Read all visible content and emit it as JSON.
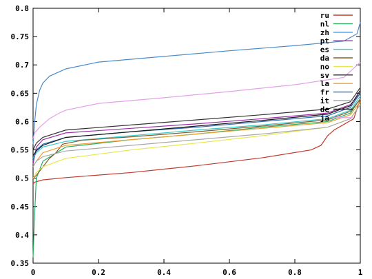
{
  "chart_data": {
    "type": "line",
    "title": "",
    "xlabel": "",
    "ylabel": "",
    "xlim": [
      0,
      1
    ],
    "ylim": [
      0.35,
      0.8
    ],
    "x_ticks": [
      "0",
      "0.2",
      "0.4",
      "0.6",
      "0.8",
      "1"
    ],
    "y_ticks": [
      "0.35",
      "0.4",
      "0.45",
      "0.5",
      "0.55",
      "0.6",
      "0.65",
      "0.7",
      "0.75",
      "0.8"
    ],
    "grid": false,
    "legend_position": "top-right",
    "series": [
      {
        "name": "ru",
        "color": "#c0392b",
        "points": [
          [
            0,
            0.49
          ],
          [
            0.005,
            0.493
          ],
          [
            0.03,
            0.497
          ],
          [
            0.1,
            0.501
          ],
          [
            0.3,
            0.51
          ],
          [
            0.5,
            0.522
          ],
          [
            0.7,
            0.536
          ],
          [
            0.85,
            0.55
          ],
          [
            0.88,
            0.558
          ],
          [
            0.9,
            0.575
          ],
          [
            0.92,
            0.585
          ],
          [
            0.95,
            0.595
          ],
          [
            0.98,
            0.605
          ],
          [
            1.0,
            0.64
          ]
        ]
      },
      {
        "name": "nl",
        "color": "#27ae60",
        "points": [
          [
            0,
            0.36
          ],
          [
            0.005,
            0.44
          ],
          [
            0.01,
            0.5
          ],
          [
            0.03,
            0.53
          ],
          [
            0.1,
            0.555
          ],
          [
            0.3,
            0.568
          ],
          [
            0.5,
            0.578
          ],
          [
            0.7,
            0.59
          ],
          [
            0.9,
            0.6
          ],
          [
            0.97,
            0.615
          ],
          [
            1.0,
            0.64
          ]
        ]
      },
      {
        "name": "zh",
        "color": "#4a8ccb",
        "points": [
          [
            0,
            0.56
          ],
          [
            0.005,
            0.6
          ],
          [
            0.01,
            0.63
          ],
          [
            0.02,
            0.655
          ],
          [
            0.03,
            0.668
          ],
          [
            0.05,
            0.68
          ],
          [
            0.1,
            0.693
          ],
          [
            0.2,
            0.705
          ],
          [
            0.4,
            0.715
          ],
          [
            0.6,
            0.725
          ],
          [
            0.8,
            0.734
          ],
          [
            0.95,
            0.742
          ],
          [
            0.99,
            0.755
          ],
          [
            1.0,
            0.775
          ]
        ]
      },
      {
        "name": "pt",
        "color": "#9b30a8",
        "points": [
          [
            0,
            0.525
          ],
          [
            0.01,
            0.555
          ],
          [
            0.03,
            0.568
          ],
          [
            0.1,
            0.58
          ],
          [
            0.3,
            0.588
          ],
          [
            0.5,
            0.596
          ],
          [
            0.7,
            0.605
          ],
          [
            0.9,
            0.615
          ],
          [
            0.97,
            0.63
          ],
          [
            1.0,
            0.65
          ]
        ]
      },
      {
        "name": "es",
        "color": "#33cccc",
        "points": [
          [
            0,
            0.535
          ],
          [
            0.01,
            0.545
          ],
          [
            0.03,
            0.555
          ],
          [
            0.1,
            0.565
          ],
          [
            0.3,
            0.575
          ],
          [
            0.5,
            0.585
          ],
          [
            0.7,
            0.594
          ],
          [
            0.9,
            0.605
          ],
          [
            0.97,
            0.62
          ],
          [
            1.0,
            0.645
          ]
        ]
      },
      {
        "name": "da",
        "color": "#8b5a2b",
        "points": [
          [
            0,
            0.5
          ],
          [
            0.01,
            0.505
          ],
          [
            0.03,
            0.52
          ],
          [
            0.05,
            0.535
          ],
          [
            0.07,
            0.545
          ],
          [
            0.09,
            0.56
          ],
          [
            0.15,
            0.567
          ],
          [
            0.3,
            0.573
          ],
          [
            0.5,
            0.582
          ],
          [
            0.7,
            0.592
          ],
          [
            0.9,
            0.603
          ],
          [
            0.97,
            0.618
          ],
          [
            1.0,
            0.64
          ]
        ]
      },
      {
        "name": "no",
        "color": "#e8e84a",
        "points": [
          [
            0,
            0.5
          ],
          [
            0.01,
            0.51
          ],
          [
            0.03,
            0.52
          ],
          [
            0.1,
            0.535
          ],
          [
            0.3,
            0.55
          ],
          [
            0.5,
            0.562
          ],
          [
            0.7,
            0.575
          ],
          [
            0.9,
            0.59
          ],
          [
            0.97,
            0.605
          ],
          [
            1.0,
            0.63
          ]
        ]
      },
      {
        "name": "sv",
        "color": "#333333",
        "points": [
          [
            0,
            0.55
          ],
          [
            0.01,
            0.562
          ],
          [
            0.03,
            0.572
          ],
          [
            0.1,
            0.585
          ],
          [
            0.3,
            0.594
          ],
          [
            0.5,
            0.603
          ],
          [
            0.7,
            0.612
          ],
          [
            0.9,
            0.622
          ],
          [
            0.97,
            0.635
          ],
          [
            1.0,
            0.66
          ]
        ]
      },
      {
        "name": "la",
        "color": "#f0a030",
        "points": [
          [
            0,
            0.52
          ],
          [
            0.01,
            0.53
          ],
          [
            0.03,
            0.545
          ],
          [
            0.1,
            0.558
          ],
          [
            0.3,
            0.568
          ],
          [
            0.5,
            0.578
          ],
          [
            0.7,
            0.588
          ],
          [
            0.9,
            0.598
          ],
          [
            0.97,
            0.612
          ],
          [
            1.0,
            0.635
          ]
        ]
      },
      {
        "name": "fr",
        "color": "#2f6bb0",
        "points": [
          [
            0,
            0.53
          ],
          [
            0.01,
            0.55
          ],
          [
            0.03,
            0.56
          ],
          [
            0.1,
            0.572
          ],
          [
            0.3,
            0.582
          ],
          [
            0.5,
            0.59
          ],
          [
            0.7,
            0.6
          ],
          [
            0.9,
            0.61
          ],
          [
            0.97,
            0.625
          ],
          [
            1.0,
            0.65
          ]
        ]
      },
      {
        "name": "it",
        "color": "#a8a8a8",
        "points": [
          [
            0,
            0.52
          ],
          [
            0.01,
            0.53
          ],
          [
            0.03,
            0.538
          ],
          [
            0.1,
            0.548
          ],
          [
            0.3,
            0.558
          ],
          [
            0.5,
            0.568
          ],
          [
            0.7,
            0.578
          ],
          [
            0.9,
            0.59
          ],
          [
            0.97,
            0.605
          ],
          [
            1.0,
            0.63
          ]
        ]
      },
      {
        "name": "de",
        "color": "#1a1a1a",
        "points": [
          [
            0,
            0.54
          ],
          [
            0.01,
            0.548
          ],
          [
            0.03,
            0.558
          ],
          [
            0.1,
            0.572
          ],
          [
            0.3,
            0.582
          ],
          [
            0.5,
            0.592
          ],
          [
            0.7,
            0.602
          ],
          [
            0.9,
            0.613
          ],
          [
            0.97,
            0.628
          ],
          [
            1.0,
            0.655
          ]
        ]
      },
      {
        "name": "ja",
        "color": "#e4a0e8",
        "points": [
          [
            0,
            0.57
          ],
          [
            0.005,
            0.58
          ],
          [
            0.02,
            0.59
          ],
          [
            0.05,
            0.605
          ],
          [
            0.08,
            0.615
          ],
          [
            0.1,
            0.62
          ],
          [
            0.2,
            0.632
          ],
          [
            0.4,
            0.642
          ],
          [
            0.6,
            0.653
          ],
          [
            0.8,
            0.665
          ],
          [
            0.95,
            0.678
          ],
          [
            1.0,
            0.705
          ]
        ]
      }
    ]
  }
}
